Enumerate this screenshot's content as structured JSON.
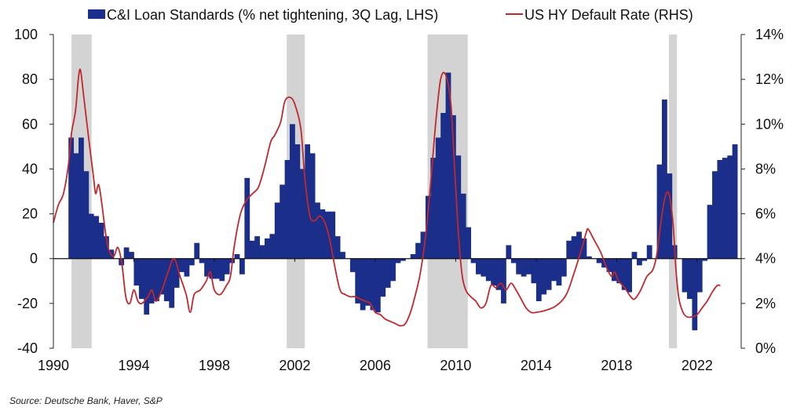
{
  "chart_data": {
    "type": "bar+line",
    "title": "",
    "legend": {
      "placement": "top",
      "entries": [
        {
          "name": "C&I Loan Standards (% net tightening, 3Q Lag, LHS)",
          "kind": "bar",
          "color": "#1a2e8a"
        },
        {
          "name": "US HY Default Rate (RHS)",
          "kind": "line",
          "color": "#c0282d"
        }
      ]
    },
    "x": {
      "start": 1990,
      "end": 2024.5,
      "tick_labels": [
        "1990",
        "1994",
        "1998",
        "2002",
        "2006",
        "2010",
        "2014",
        "2018",
        "2022"
      ],
      "ticks": [
        1990,
        1994,
        1998,
        2002,
        2006,
        2010,
        2014,
        2018,
        2022
      ]
    },
    "y_left": {
      "range": [
        -40,
        100
      ],
      "tick_labels": [
        "-40",
        "-20",
        "0",
        "20",
        "40",
        "60",
        "80",
        "100"
      ],
      "ticks": [
        -40,
        -20,
        0,
        20,
        40,
        60,
        80,
        100
      ]
    },
    "y_right": {
      "range": [
        0,
        14
      ],
      "tick_labels": [
        "0%",
        "2%",
        "4%",
        "6%",
        "8%",
        "10%",
        "12%",
        "14%"
      ],
      "ticks": [
        0,
        2,
        4,
        6,
        8,
        10,
        12,
        14
      ]
    },
    "recessions": [
      [
        1990.9,
        1991.9
      ],
      [
        2001.6,
        2002.5
      ],
      [
        2008.6,
        2010.6
      ],
      [
        2020.6,
        2021.0
      ]
    ],
    "recession_color": "#d3d3d3",
    "bars": {
      "name": "C&I Loan Standards (% net tightening, 3Q Lag, LHS)",
      "start": 1990.75,
      "step": 0.25,
      "values": [
        54,
        47,
        54,
        39,
        20,
        19,
        16,
        10,
        4,
        0,
        -3,
        5,
        3,
        -12,
        -18,
        -25,
        -20,
        -19,
        -16,
        -19,
        -22,
        -13,
        -6,
        -8,
        -3,
        7,
        -2,
        -8,
        -9,
        -9,
        -10,
        -7,
        -2,
        2,
        -7,
        36,
        8,
        10,
        6,
        9,
        11,
        25,
        33,
        44,
        60,
        51,
        40,
        51,
        47,
        25,
        22,
        21,
        21,
        10,
        3,
        0,
        -6,
        -20,
        -23,
        -21,
        -23,
        -24,
        -17,
        -13,
        -10,
        -2,
        -1,
        0,
        2,
        7,
        12,
        28,
        45,
        54,
        65,
        83,
        64,
        46,
        29,
        14,
        -2,
        -7,
        -8,
        -10,
        -12,
        -14,
        -20,
        6,
        -2,
        -7,
        -8,
        -7,
        -11,
        -19,
        -16,
        -14,
        -10,
        -12,
        -8,
        8,
        10,
        12,
        9,
        1,
        0,
        -2,
        -4,
        -6,
        -10,
        -11,
        -14,
        -15,
        3,
        -3,
        -1,
        6,
        0,
        42,
        71,
        38,
        6,
        0,
        -15,
        -18,
        -32,
        -15,
        -1,
        24,
        39,
        44,
        45,
        46,
        51
      ]
    },
    "line": {
      "name": "US HY Default Rate (RHS)",
      "points": [
        [
          1990.0,
          5.6
        ],
        [
          1990.25,
          6.4
        ],
        [
          1990.5,
          6.9
        ],
        [
          1990.75,
          8.2
        ],
        [
          1990.9,
          9.6
        ],
        [
          1991.1,
          10.6
        ],
        [
          1991.25,
          12.1
        ],
        [
          1991.35,
          12.4
        ],
        [
          1991.5,
          11.3
        ],
        [
          1991.75,
          9.4
        ],
        [
          1992.0,
          7.6
        ],
        [
          1992.1,
          6.9
        ],
        [
          1992.25,
          7.3
        ],
        [
          1992.4,
          6.5
        ],
        [
          1992.6,
          5.1
        ],
        [
          1992.75,
          4.4
        ],
        [
          1993.0,
          4.1
        ],
        [
          1993.2,
          4.5
        ],
        [
          1993.4,
          3.8
        ],
        [
          1993.6,
          2.3
        ],
        [
          1993.8,
          2.0
        ],
        [
          1994.0,
          2.6
        ],
        [
          1994.2,
          2.1
        ],
        [
          1994.4,
          2.0
        ],
        [
          1994.7,
          2.3
        ],
        [
          1994.9,
          2.6
        ],
        [
          1995.1,
          2.1
        ],
        [
          1995.4,
          2.6
        ],
        [
          1995.7,
          3.4
        ],
        [
          1996.0,
          4.0
        ],
        [
          1996.3,
          3.2
        ],
        [
          1996.6,
          2.4
        ],
        [
          1996.8,
          1.6
        ],
        [
          1997.0,
          2.4
        ],
        [
          1997.3,
          2.6
        ],
        [
          1997.6,
          3.0
        ],
        [
          1997.8,
          3.4
        ],
        [
          1998.0,
          2.6
        ],
        [
          1998.3,
          2.4
        ],
        [
          1998.6,
          2.8
        ],
        [
          1998.8,
          3.2
        ],
        [
          1999.0,
          4.6
        ],
        [
          1999.3,
          6.0
        ],
        [
          1999.6,
          6.6
        ],
        [
          1999.9,
          6.9
        ],
        [
          2000.2,
          7.2
        ],
        [
          2000.5,
          8.1
        ],
        [
          2000.8,
          9.2
        ],
        [
          2001.0,
          9.5
        ],
        [
          2001.3,
          10.1
        ],
        [
          2001.5,
          11.0
        ],
        [
          2001.75,
          11.2
        ],
        [
          2002.0,
          10.9
        ],
        [
          2002.3,
          9.8
        ],
        [
          2002.5,
          7.6
        ],
        [
          2002.75,
          5.9
        ],
        [
          2003.0,
          5.7
        ],
        [
          2003.25,
          5.9
        ],
        [
          2003.5,
          5.6
        ],
        [
          2003.75,
          4.8
        ],
        [
          2004.0,
          3.6
        ],
        [
          2004.25,
          2.6
        ],
        [
          2004.5,
          2.4
        ],
        [
          2004.75,
          2.3
        ],
        [
          2005.0,
          2.3
        ],
        [
          2005.25,
          2.2
        ],
        [
          2005.5,
          2.1
        ],
        [
          2005.75,
          2.0
        ],
        [
          2006.0,
          1.6
        ],
        [
          2006.25,
          1.5
        ],
        [
          2006.5,
          1.3
        ],
        [
          2006.75,
          1.2
        ],
        [
          2007.0,
          1.1
        ],
        [
          2007.25,
          1.0
        ],
        [
          2007.5,
          1.1
        ],
        [
          2007.75,
          1.6
        ],
        [
          2008.0,
          2.4
        ],
        [
          2008.25,
          3.4
        ],
        [
          2008.5,
          5.0
        ],
        [
          2008.75,
          7.3
        ],
        [
          2009.0,
          10.0
        ],
        [
          2009.25,
          12.0
        ],
        [
          2009.5,
          12.2
        ],
        [
          2009.75,
          11.0
        ],
        [
          2009.9,
          8.8
        ],
        [
          2010.1,
          5.6
        ],
        [
          2010.3,
          3.4
        ],
        [
          2010.5,
          2.6
        ],
        [
          2010.75,
          2.3
        ],
        [
          2011.0,
          2.1
        ],
        [
          2011.25,
          1.8
        ],
        [
          2011.5,
          2.0
        ],
        [
          2011.75,
          2.8
        ],
        [
          2012.0,
          2.7
        ],
        [
          2012.25,
          2.9
        ],
        [
          2012.5,
          2.6
        ],
        [
          2012.75,
          2.9
        ],
        [
          2013.0,
          2.6
        ],
        [
          2013.25,
          2.2
        ],
        [
          2013.5,
          1.8
        ],
        [
          2013.75,
          1.6
        ],
        [
          2014.0,
          1.6
        ],
        [
          2014.5,
          1.7
        ],
        [
          2015.0,
          1.9
        ],
        [
          2015.5,
          2.4
        ],
        [
          2015.9,
          3.4
        ],
        [
          2016.25,
          4.4
        ],
        [
          2016.5,
          5.2
        ],
        [
          2016.6,
          5.3
        ],
        [
          2016.9,
          4.8
        ],
        [
          2017.2,
          4.3
        ],
        [
          2017.5,
          3.6
        ],
        [
          2017.75,
          3.2
        ],
        [
          2017.9,
          3.4
        ],
        [
          2018.1,
          3.0
        ],
        [
          2018.4,
          2.7
        ],
        [
          2018.7,
          2.3
        ],
        [
          2018.9,
          2.2
        ],
        [
          2019.2,
          2.6
        ],
        [
          2019.5,
          3.2
        ],
        [
          2019.8,
          3.5
        ],
        [
          2020.0,
          4.2
        ],
        [
          2020.2,
          5.6
        ],
        [
          2020.4,
          6.7
        ],
        [
          2020.6,
          6.9
        ],
        [
          2020.8,
          5.6
        ],
        [
          2020.95,
          3.5
        ],
        [
          2021.1,
          2.2
        ],
        [
          2021.3,
          1.6
        ],
        [
          2021.5,
          1.4
        ],
        [
          2021.75,
          1.4
        ],
        [
          2022.0,
          1.5
        ],
        [
          2022.25,
          1.8
        ],
        [
          2022.5,
          2.1
        ],
        [
          2022.75,
          2.5
        ],
        [
          2023.0,
          2.8
        ],
        [
          2023.15,
          2.8
        ]
      ]
    }
  },
  "source": "Source: Deutsche Bank, Haver, S&P"
}
